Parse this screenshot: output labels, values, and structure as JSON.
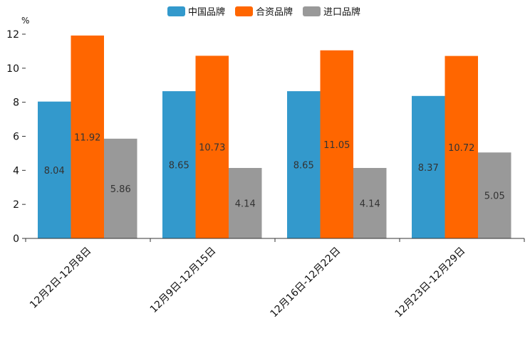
{
  "chart_data": {
    "type": "bar",
    "title": "",
    "unit": "%",
    "xlabel": "",
    "ylabel": "%",
    "categories": [
      "12月2日-12月8日",
      "12月9日-12月15日",
      "12月16日-12月22日",
      "12月23日-12月29日"
    ],
    "series": [
      {
        "name": "中国品牌",
        "color": "#3399CC",
        "values": [
          8.04,
          8.65,
          8.65,
          8.37
        ]
      },
      {
        "name": "合资品牌",
        "color": "#FF6600",
        "values": [
          11.92,
          10.73,
          11.05,
          10.72
        ]
      },
      {
        "name": "进口品牌",
        "color": "#999999",
        "values": [
          5.86,
          4.14,
          4.14,
          5.05
        ]
      }
    ],
    "ylim": [
      0,
      12
    ],
    "yticks": [
      0,
      2,
      4,
      6,
      8,
      10,
      12
    ],
    "grid": false,
    "legend": "top-center"
  }
}
